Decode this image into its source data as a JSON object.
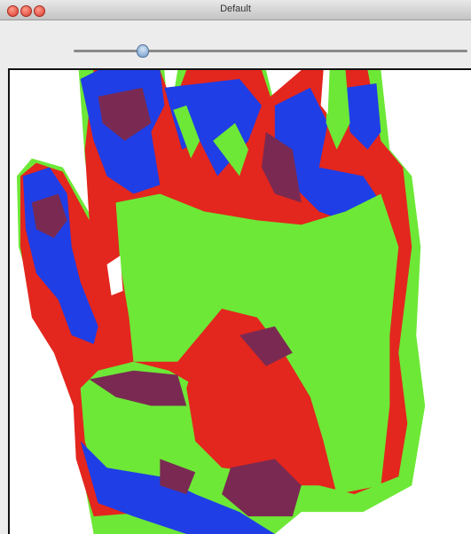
{
  "window": {
    "title": "Default"
  }
}
